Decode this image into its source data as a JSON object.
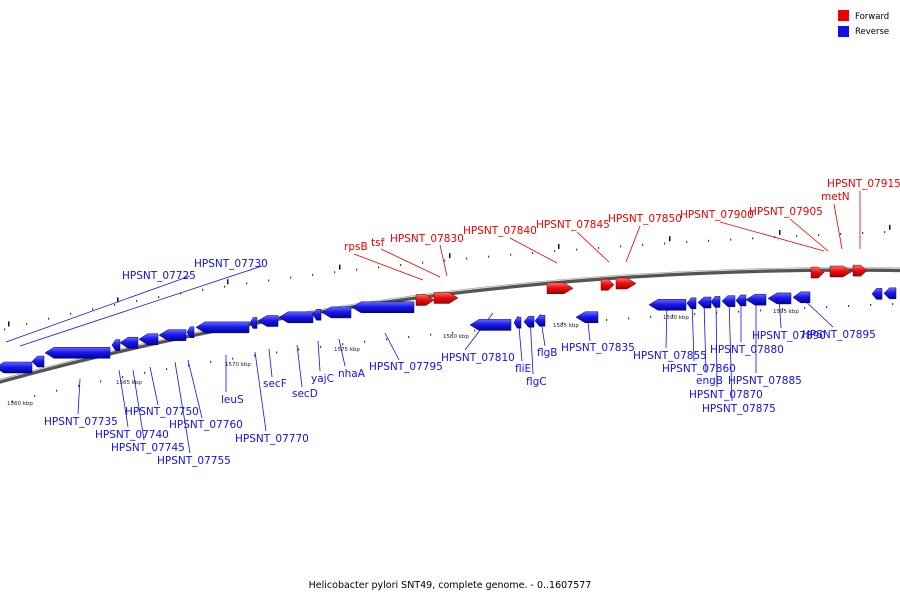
{
  "caption": "Helicobacter pylori SNT49, complete genome. - 0..1607577",
  "legend": {
    "forward_label": "Forward",
    "reverse_label": "Reverse",
    "forward_color": "#ee0000",
    "reverse_color": "#1010ee"
  },
  "scale_labels": [
    "1560 kbp",
    "1565 kbp",
    "1570 kbp",
    "1575 kbp",
    "1580 kbp",
    "1585 kbp",
    "1590 kbp",
    "1595 kbp"
  ],
  "reverse_labels": [
    "HPSNT_07725",
    "HPSNT_07730",
    "HPSNT_07735",
    "HPSNT_07740",
    "HPSNT_07745",
    "HPSNT_07750",
    "HPSNT_07755",
    "HPSNT_07760",
    "leuS",
    "HPSNT_07770",
    "secF",
    "secD",
    "yajC",
    "nhaA",
    "HPSNT_07795",
    "HPSNT_07810",
    "fliE",
    "flgC",
    "flgB",
    "HPSNT_07835",
    "HPSNT_07855",
    "HPSNT_07860",
    "engB",
    "HPSNT_07870",
    "HPSNT_07875",
    "HPSNT_07880",
    "HPSNT_07885",
    "HPSNT_07890",
    "HPSNT_07895"
  ],
  "forward_labels": [
    "rpsB",
    "tsf",
    "HPSNT_07830",
    "HPSNT_07840",
    "HPSNT_07845",
    "HPSNT_07850",
    "HPSNT_07900",
    "HPSNT_07905",
    "metN",
    "HPSNT_07915"
  ]
}
